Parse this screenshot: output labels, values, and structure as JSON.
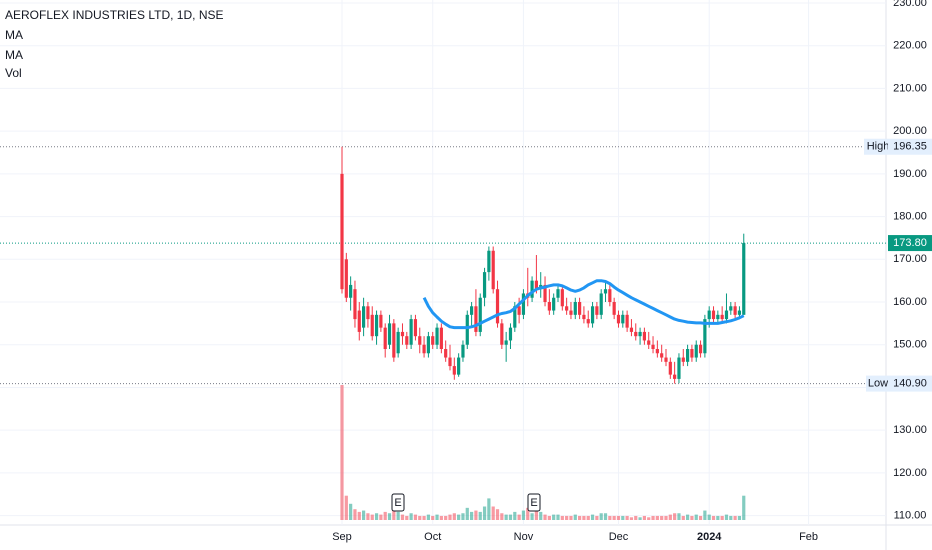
{
  "chart_data": {
    "type": "candlestick",
    "title": "AEROFLEX INDUSTRIES LTD, 1D, NSE",
    "legend": [
      "MA",
      "MA",
      "Vol"
    ],
    "up_color": "#089981",
    "down_color": "#f23645",
    "categories": [
      "Sep",
      null,
      null,
      null,
      null,
      null,
      null,
      null,
      null,
      null,
      null,
      null,
      null,
      null,
      null,
      null,
      null,
      null,
      null,
      null,
      null,
      "Oct",
      null,
      null,
      null,
      null,
      null,
      null,
      null,
      null,
      null,
      null,
      null,
      null,
      null,
      null,
      null,
      null,
      null,
      null,
      null,
      null,
      "Nov",
      null,
      null,
      null,
      null,
      null,
      null,
      null,
      null,
      null,
      null,
      null,
      null,
      null,
      null,
      null,
      null,
      null,
      null,
      null,
      null,
      null,
      "Dec",
      null,
      null,
      null,
      null,
      null,
      null,
      null,
      null,
      null,
      null,
      null,
      null,
      null,
      null,
      null,
      null,
      null,
      null,
      null,
      null,
      "2024",
      null,
      null,
      null,
      null,
      null,
      null,
      null,
      null,
      null,
      null,
      null,
      null,
      null,
      null,
      null,
      null,
      null,
      null,
      null,
      null,
      null,
      null,
      "Feb",
      null,
      null,
      null,
      null,
      null,
      null,
      null,
      null,
      null,
      null,
      null,
      null,
      null,
      null,
      null,
      null,
      null
    ],
    "ohlc": [
      [
        190,
        196.35,
        162,
        163
      ],
      [
        170,
        171.5,
        160,
        161
      ],
      [
        161,
        166,
        158,
        164
      ],
      [
        163,
        165,
        154,
        156
      ],
      [
        158,
        160,
        151,
        153
      ],
      [
        154,
        161,
        152,
        159
      ],
      [
        159,
        160,
        154,
        156
      ],
      [
        157,
        159,
        151,
        152
      ],
      [
        152,
        158,
        150,
        157
      ],
      [
        157,
        158,
        153,
        154
      ],
      [
        154,
        155,
        147,
        149
      ],
      [
        150,
        157,
        149,
        155
      ],
      [
        155,
        156,
        146,
        147
      ],
      [
        148,
        154,
        147,
        153
      ],
      [
        153,
        155,
        150,
        152
      ],
      [
        152,
        153,
        149,
        150
      ],
      [
        150,
        157,
        149,
        156
      ],
      [
        156,
        157,
        151,
        152
      ],
      [
        152,
        154,
        148,
        150
      ],
      [
        150,
        152,
        147,
        148
      ],
      [
        148,
        153,
        147,
        152
      ],
      [
        152,
        153,
        149,
        150
      ],
      [
        150,
        155,
        149,
        154
      ],
      [
        154,
        155,
        148,
        149
      ],
      [
        149,
        151,
        146,
        147
      ],
      [
        147,
        150,
        144,
        145
      ],
      [
        145,
        147,
        141.8,
        143
      ],
      [
        143,
        148,
        142.5,
        147
      ],
      [
        147,
        151,
        146,
        150
      ],
      [
        150,
        158,
        149,
        157
      ],
      [
        157,
        160,
        154,
        159
      ],
      [
        159,
        163,
        152,
        153
      ],
      [
        153,
        162,
        152,
        161
      ],
      [
        161,
        168,
        159,
        167
      ],
      [
        167,
        173,
        165,
        172
      ],
      [
        172,
        173,
        162,
        163
      ],
      [
        163,
        165,
        154,
        155
      ],
      [
        155,
        156,
        149,
        150
      ],
      [
        150,
        153,
        146,
        151
      ],
      [
        151,
        155,
        149,
        154
      ],
      [
        154,
        160,
        153,
        159
      ],
      [
        159,
        161,
        155,
        157
      ],
      [
        157,
        163,
        156,
        162
      ],
      [
        162,
        168,
        159,
        161
      ],
      [
        161,
        166,
        160,
        165
      ],
      [
        165,
        171,
        162,
        163
      ],
      [
        163,
        167,
        161,
        164
      ],
      [
        164,
        166,
        159,
        160
      ],
      [
        160,
        163,
        157,
        158
      ],
      [
        158,
        162,
        157,
        161
      ],
      [
        161,
        164,
        160,
        163
      ],
      [
        163,
        164,
        158,
        159
      ],
      [
        159,
        161,
        157,
        158
      ],
      [
        158,
        160,
        156,
        157
      ],
      [
        157,
        161,
        156,
        160
      ],
      [
        160,
        161,
        156,
        157
      ],
      [
        157,
        159,
        155,
        156
      ],
      [
        156,
        158,
        154,
        155
      ],
      [
        155,
        160,
        154,
        159
      ],
      [
        159,
        160,
        156,
        157
      ],
      [
        157,
        163,
        156,
        162
      ],
      [
        162,
        165,
        160,
        163
      ],
      [
        163,
        164,
        159,
        160
      ],
      [
        160,
        161,
        156,
        157
      ],
      [
        157,
        158,
        154,
        155
      ],
      [
        155,
        158,
        154,
        157
      ],
      [
        157,
        158,
        153,
        154
      ],
      [
        154,
        156,
        152,
        153
      ],
      [
        153,
        155,
        151,
        152
      ],
      [
        152,
        154,
        150,
        153
      ],
      [
        153,
        154,
        150,
        151
      ],
      [
        151,
        153,
        149,
        150
      ],
      [
        150,
        152,
        148,
        149
      ],
      [
        149,
        151,
        147,
        148
      ],
      [
        148,
        150,
        146,
        147
      ],
      [
        147,
        149,
        145,
        146
      ],
      [
        146,
        147,
        142,
        143
      ],
      [
        143,
        146,
        140.9,
        142
      ],
      [
        142,
        148,
        141,
        147
      ],
      [
        147,
        149,
        145,
        146
      ],
      [
        146,
        150,
        145,
        149
      ],
      [
        149,
        150,
        146,
        147
      ],
      [
        147,
        151,
        146,
        150
      ],
      [
        150,
        151,
        147,
        148
      ],
      [
        148,
        157,
        147,
        156
      ],
      [
        156,
        159,
        154,
        158
      ],
      [
        158,
        159,
        155,
        156
      ],
      [
        156,
        158,
        155,
        157
      ],
      [
        157,
        159,
        155,
        156
      ],
      [
        156,
        162,
        155,
        158
      ],
      [
        158,
        160,
        157,
        159
      ],
      [
        159,
        160,
        156,
        157
      ],
      [
        157,
        159,
        156,
        158
      ],
      [
        157,
        176,
        157,
        173.8
      ],
      null,
      null,
      null,
      null,
      null,
      null,
      null,
      null,
      null,
      null,
      null,
      null,
      null,
      null,
      null,
      null,
      null,
      null,
      null,
      null,
      null,
      null,
      null,
      null,
      null,
      null,
      null,
      null,
      null,
      null,
      null,
      null
    ],
    "volume": [
      100,
      18,
      12,
      8,
      6,
      7,
      5,
      4,
      5,
      4,
      6,
      5,
      7,
      6,
      4,
      3,
      5,
      4,
      3,
      3,
      4,
      3,
      4,
      3,
      3,
      4,
      5,
      4,
      5,
      9,
      6,
      7,
      6,
      10,
      16,
      10,
      8,
      5,
      4,
      4,
      6,
      4,
      7,
      9,
      5,
      12,
      6,
      4,
      3,
      4,
      4,
      3,
      3,
      3,
      4,
      3,
      3,
      3,
      4,
      3,
      5,
      5,
      3,
      3,
      3,
      3,
      3,
      2,
      3,
      2,
      3,
      2,
      3,
      3,
      3,
      3,
      4,
      5,
      5,
      3,
      4,
      3,
      4,
      3,
      7,
      4,
      3,
      3,
      3,
      4,
      3,
      3,
      3,
      18,
      null,
      null,
      null,
      null,
      null,
      null,
      null,
      null,
      null,
      null,
      null,
      null,
      null,
      null,
      null,
      null,
      null,
      null,
      null,
      null,
      null,
      null,
      null,
      null,
      null,
      null,
      null,
      null,
      null,
      null,
      null,
      null
    ],
    "ma": {
      "color": "#2196f3",
      "values": [
        null,
        null,
        null,
        null,
        null,
        null,
        null,
        null,
        null,
        null,
        null,
        null,
        null,
        null,
        null,
        null,
        null,
        null,
        null,
        161,
        159,
        157.5,
        156.5,
        155.5,
        154.8,
        154.2,
        154,
        154,
        154,
        154,
        154.2,
        154.5,
        155,
        155.5,
        156,
        156.5,
        157,
        157.3,
        157.5,
        157.8,
        158.5,
        159.5,
        160.5,
        161.5,
        162.3,
        163,
        163.3,
        163.5,
        163.8,
        164,
        164,
        163.8,
        163.3,
        162.8,
        162.5,
        162.8,
        163.3,
        164,
        164.5,
        165,
        165,
        164.8,
        164.3,
        163.5,
        162.8,
        162.2,
        161.6,
        161,
        160.5,
        160,
        159.5,
        159,
        158.5,
        158,
        157.5,
        157,
        156.5,
        156,
        155.7,
        155.5,
        155.3,
        155.2,
        155.1,
        155.1,
        155,
        155,
        155,
        155,
        155.2,
        155.4,
        155.6,
        155.9,
        156.3,
        156.8,
        null,
        null,
        null,
        null,
        null,
        null,
        null,
        null,
        null,
        null,
        null,
        null,
        null,
        null,
        null,
        null,
        null,
        null,
        null,
        null,
        null,
        null,
        null,
        null,
        null,
        null,
        null,
        null,
        null,
        null,
        null,
        null
      ]
    },
    "ylim": [
      107.8,
      230.7
    ],
    "yticks": [
      {
        "value": 110,
        "label": "110.00"
      },
      {
        "value": 120,
        "label": "120.00"
      },
      {
        "value": 130,
        "label": "130.00"
      },
      {
        "value": 140,
        "label": "140.00"
      },
      {
        "value": 150,
        "label": "150.00"
      },
      {
        "value": 160,
        "label": "160.00"
      },
      {
        "value": 170,
        "label": "170.00"
      },
      {
        "value": 180,
        "label": "180.00"
      },
      {
        "value": 190,
        "label": "190.00"
      },
      {
        "value": 200,
        "label": "200.00"
      },
      {
        "value": 210,
        "label": "210.00"
      },
      {
        "value": 220,
        "label": "220.00"
      },
      {
        "value": 230,
        "label": "230.00"
      }
    ],
    "high_name": "High",
    "high": 196.35,
    "low_name": "Low",
    "low": {
      "value": 140.9,
      "label": "140.90"
    },
    "last": {
      "value": 173.8,
      "label": "173.80"
    },
    "events": [
      "E",
      "E"
    ],
    "grid": true
  }
}
